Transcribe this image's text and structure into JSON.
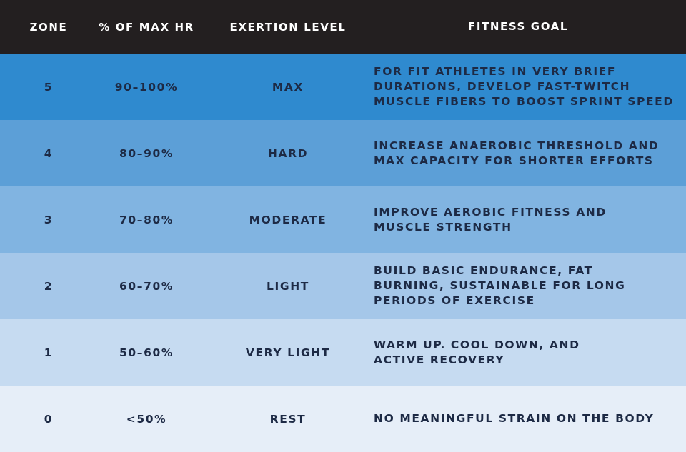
{
  "table": {
    "header": [
      "ZONE",
      "% OF MAX HR",
      "EXERTION LEVEL",
      "FITNESS GOAL"
    ],
    "rows": [
      [
        "5",
        "90–100%",
        "MAX",
        [
          "FOR FIT ATHLETES IN VERY BRIEF",
          "DURATIONS, DEVELOP FAST-TWITCH",
          "MUSCLE FIBERS TO BOOST SPRINT SPEED"
        ]
      ],
      [
        "4",
        "80–90%",
        "HARD",
        [
          "INCREASE ANAEROBIC THRESHOLD AND",
          "MAX CAPACITY FOR SHORTER EFFORTS"
        ]
      ],
      [
        "3",
        "70–80%",
        "MODERATE",
        [
          "IMPROVE AEROBIC FITNESS AND",
          "MUSCLE STRENGTH"
        ]
      ],
      [
        "2",
        "60–70%",
        "LIGHT",
        [
          "BUILD BASIC ENDURANCE, FAT",
          "BURNING, SUSTAINABLE FOR LONG",
          "PERIODS OF EXERCISE"
        ]
      ],
      [
        "1",
        "50–60%",
        "VERY LIGHT",
        [
          "WARM UP. COOL DOWN, AND",
          "ACTIVE RECOVERY"
        ]
      ],
      [
        "0",
        "<50%",
        "REST",
        [
          "NO MEANINGFUL STRAIN ON THE BODY"
        ]
      ]
    ]
  }
}
